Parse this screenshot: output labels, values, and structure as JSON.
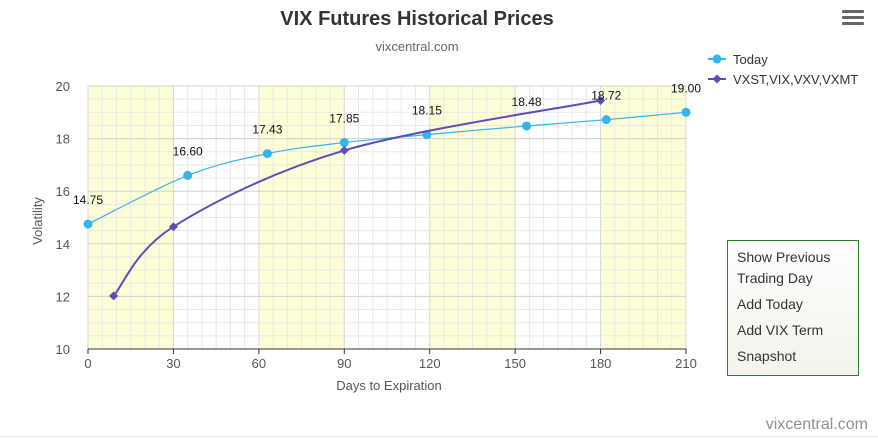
{
  "title": "VIX Futures Historical Prices",
  "subtitle": "vixcentral.com",
  "credit": "vixcentral.com",
  "menu_icon": "hamburger-menu-icon",
  "side_panel": {
    "options": [
      "Show Previous Trading Day",
      "Add Today",
      "Add VIX Term",
      "Snapshot"
    ]
  },
  "chart_data": {
    "type": "line",
    "title": "VIX Futures Historical Prices",
    "subtitle": "vixcentral.com",
    "xlabel": "Days to Expiration",
    "ylabel": "Volatility",
    "xlim": [
      0,
      210
    ],
    "ylim": [
      10,
      20
    ],
    "x_ticks": [
      0,
      30,
      60,
      90,
      120,
      150,
      180,
      210
    ],
    "y_ticks": [
      10,
      12,
      14,
      16,
      18,
      20
    ],
    "shaded_bands": [
      [
        0,
        30
      ],
      [
        60,
        90
      ],
      [
        120,
        150
      ],
      [
        180,
        210
      ]
    ],
    "band_color": "#fdfdd6",
    "grid": true,
    "legend_position": "top-right",
    "series": [
      {
        "name": "Today",
        "color": "#36b4ee",
        "marker": "circle",
        "x": [
          0,
          35,
          63,
          90,
          119,
          154,
          182,
          210
        ],
        "values": [
          14.75,
          16.6,
          17.43,
          17.85,
          18.15,
          18.48,
          18.72,
          19.0
        ],
        "labels": [
          "14.75",
          "16.60",
          "17.43",
          "17.85",
          "18.15",
          "18.48",
          "18.72",
          "19.00"
        ]
      },
      {
        "name": "VXST,VIX,VXV,VXMT",
        "color": "#5a4fb7",
        "marker": "diamond",
        "x": [
          9,
          30,
          90,
          180
        ],
        "values": [
          12.02,
          14.65,
          17.55,
          19.45
        ]
      }
    ]
  }
}
